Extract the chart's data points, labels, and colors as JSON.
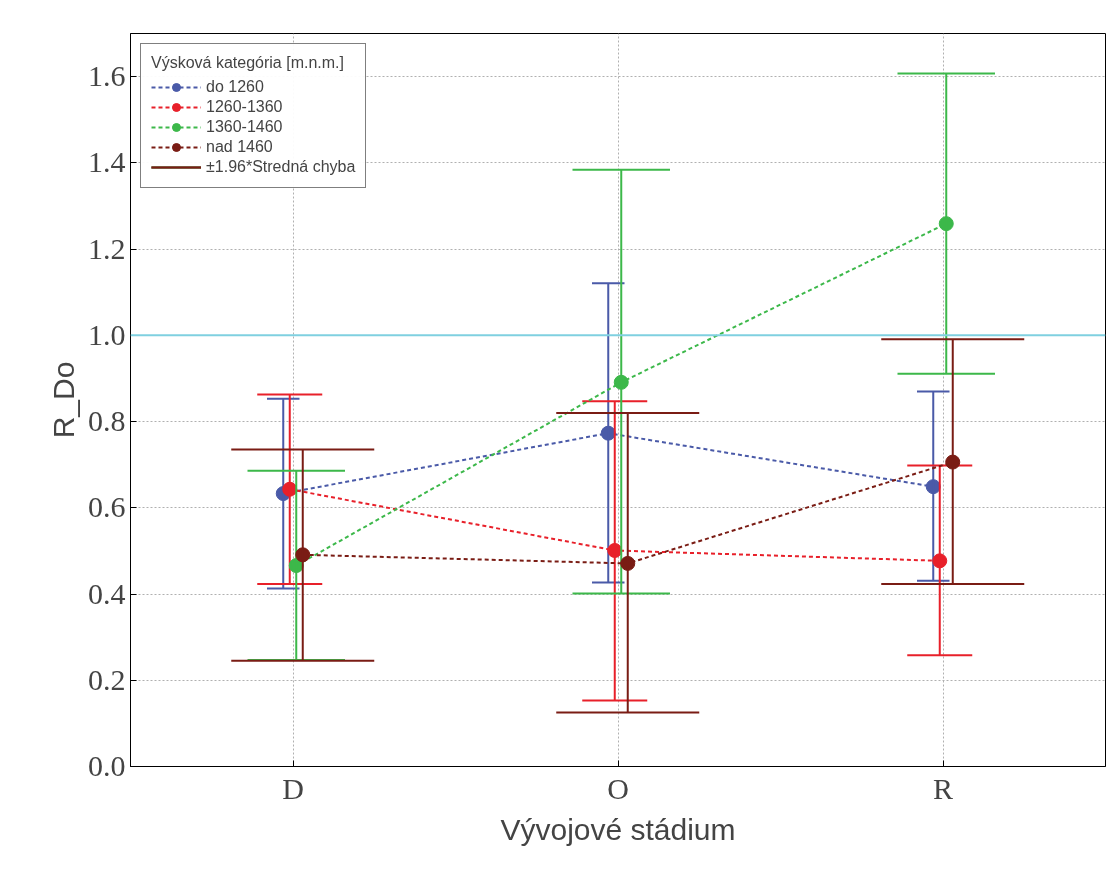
{
  "chart_data": {
    "type": "line",
    "xlabel": "Vývojové stádium",
    "ylabel": "R_Do",
    "legend_title": "Výsková kategória [m.n.m.]",
    "categories": [
      "D",
      "O",
      "R"
    ],
    "series": [
      {
        "name": "do 1260",
        "color": "#4a5aa8",
        "values": [
          0.633,
          0.773,
          0.649
        ],
        "errors": [
          [
            0.413,
            0.853
          ],
          [
            0.427,
            1.121
          ],
          [
            0.431,
            0.87
          ]
        ]
      },
      {
        "name": "1260-1360",
        "color": "#e8202a",
        "values": [
          0.643,
          0.501,
          0.477
        ],
        "errors": [
          [
            0.423,
            0.863
          ],
          [
            0.153,
            0.847
          ],
          [
            0.258,
            0.698
          ]
        ]
      },
      {
        "name": "1360-1460",
        "color": "#3cb84a",
        "values": [
          0.466,
          0.891,
          1.259
        ],
        "errors": [
          [
            0.247,
            0.686
          ],
          [
            0.401,
            1.384
          ],
          [
            0.911,
            1.607
          ]
        ]
      },
      {
        "name": "nad 1460",
        "color": "#7a1c14",
        "values": [
          0.491,
          0.471,
          0.706
        ],
        "errors": [
          [
            0.245,
            0.735
          ],
          [
            0.125,
            0.82
          ],
          [
            0.423,
            0.991
          ]
        ]
      }
    ],
    "annotations": [
      "±1.96*Stredná chyba"
    ],
    "ylim": [
      0,
      1.7
    ],
    "yticks": [
      {
        "value": 0,
        "label": "0.0"
      },
      0.2,
      0.4,
      0.6,
      0.8,
      {
        "value": 1,
        "label": "1.0"
      },
      1.2,
      1.4,
      1.6
    ],
    "ref_lines": [
      {
        "axis": "y",
        "value": 1.0,
        "color": "#7fd0e0"
      }
    ],
    "grid": true,
    "legend": "top left",
    "marker": "circle",
    "line_style": "dashed"
  }
}
